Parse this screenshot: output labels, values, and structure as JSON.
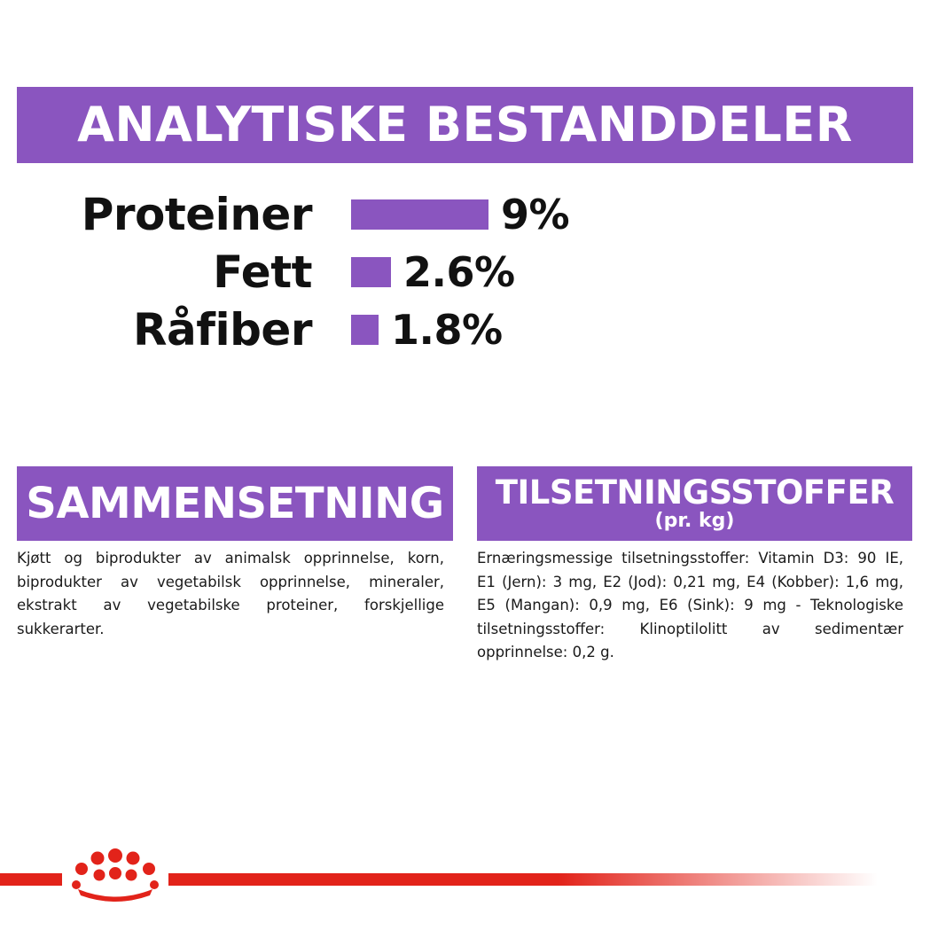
{
  "header": {
    "title": "ANALYTISKE BESTANDDELER"
  },
  "nutrients": [
    {
      "label": "Proteiner",
      "value": "9%",
      "percent": 9
    },
    {
      "label": "Fett",
      "value": "2.6%",
      "percent": 2.6
    },
    {
      "label": "Råfiber",
      "value": "1.8%",
      "percent": 1.8
    }
  ],
  "composition": {
    "title": "SAMMENSETNING",
    "text": "Kjøtt og biprodukter av animalsk opprinnelse, korn, biprodukter av vegetabilsk opprinnelse, mineraler, ekstrakt av vegetabilske proteiner, forskjellige sukkerarter."
  },
  "additives": {
    "title": "TILSETNINGSSTOFFER",
    "subtitle": "(pr. kg)",
    "text": "Ernæringsmessige tilsetningsstoffer: Vitamin D3: 90 IE, E1 (Jern): 3 mg, E2 (Jod): 0,21 mg, E4 (Kobber): 1,6 mg, E5 (Mangan): 0,9 mg, E6 (Sink): 9 mg - Teknologiske tilsetningsstoffer: Klinoptilolitt av sedimentær opprinnelse: 0,2 g."
  },
  "colors": {
    "accent": "#8a55bf",
    "brand_red": "#e2231a"
  },
  "logo": {
    "icon": "crown-logo-icon"
  }
}
